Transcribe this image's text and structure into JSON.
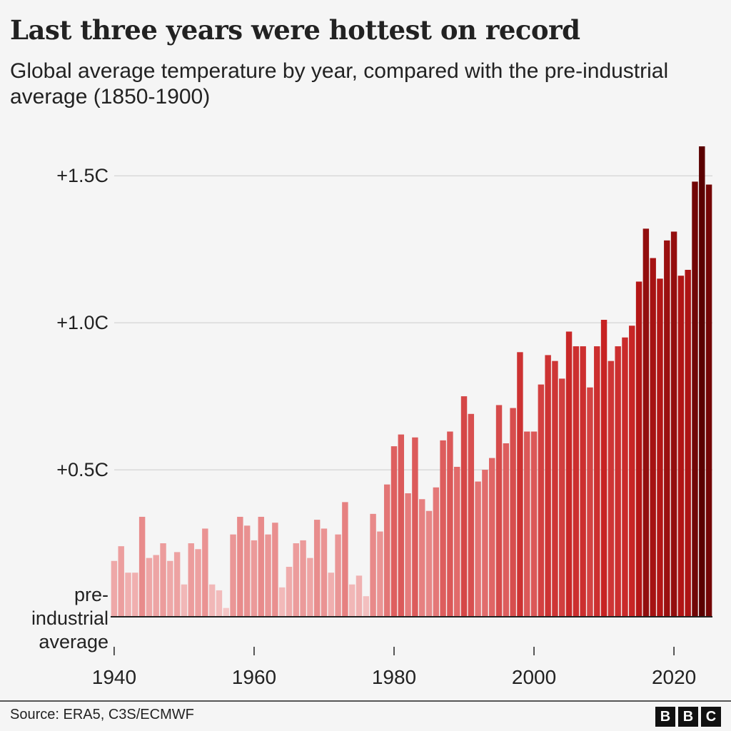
{
  "chart_data": {
    "type": "bar",
    "title": "Last three years were hottest on record",
    "subtitle": "Global average temperature by year, compared with the pre-industrial average (1850-1900)",
    "x": [
      1940,
      1941,
      1942,
      1943,
      1944,
      1945,
      1946,
      1947,
      1948,
      1949,
      1950,
      1951,
      1952,
      1953,
      1954,
      1955,
      1956,
      1957,
      1958,
      1959,
      1960,
      1961,
      1962,
      1963,
      1964,
      1965,
      1966,
      1967,
      1968,
      1969,
      1970,
      1971,
      1972,
      1973,
      1974,
      1975,
      1976,
      1977,
      1978,
      1979,
      1980,
      1981,
      1982,
      1983,
      1984,
      1985,
      1986,
      1987,
      1988,
      1989,
      1990,
      1991,
      1992,
      1993,
      1994,
      1995,
      1996,
      1997,
      1998,
      1999,
      2000,
      2001,
      2002,
      2003,
      2004,
      2005,
      2006,
      2007,
      2008,
      2009,
      2010,
      2011,
      2012,
      2013,
      2014,
      2015,
      2016,
      2017,
      2018,
      2019,
      2020,
      2021,
      2022,
      2023,
      2024,
      2025
    ],
    "values": [
      0.19,
      0.24,
      0.15,
      0.15,
      0.34,
      0.2,
      0.21,
      0.25,
      0.19,
      0.22,
      0.11,
      0.25,
      0.23,
      0.3,
      0.11,
      0.09,
      0.03,
      0.28,
      0.34,
      0.31,
      0.26,
      0.34,
      0.28,
      0.32,
      0.1,
      0.17,
      0.25,
      0.26,
      0.2,
      0.33,
      0.3,
      0.15,
      0.28,
      0.39,
      0.11,
      0.14,
      0.07,
      0.35,
      0.29,
      0.45,
      0.58,
      0.62,
      0.42,
      0.61,
      0.4,
      0.36,
      0.44,
      0.6,
      0.63,
      0.51,
      0.75,
      0.69,
      0.46,
      0.5,
      0.54,
      0.72,
      0.59,
      0.71,
      0.9,
      0.63,
      0.63,
      0.79,
      0.89,
      0.87,
      0.81,
      0.97,
      0.92,
      0.92,
      0.78,
      0.92,
      1.01,
      0.87,
      0.92,
      0.95,
      0.99,
      1.14,
      1.32,
      1.22,
      1.15,
      1.28,
      1.31,
      1.16,
      1.18,
      1.48,
      1.6,
      1.47
    ],
    "color_scale": [
      "#f6cccc",
      "#e06666",
      "#c41a1a",
      "#5a0000"
    ],
    "xlim": [
      1939.5,
      2025.5
    ],
    "xticks": [
      1940,
      1960,
      1980,
      2000,
      2020
    ],
    "ylim": [
      0,
      1.6
    ],
    "yticks": [
      {
        "value": 0,
        "label": "pre-industrial average"
      },
      {
        "value": 0.5,
        "label": "+0.5C"
      },
      {
        "value": 1.0,
        "label": "+1.0C"
      },
      {
        "value": 1.5,
        "label": "+1.5C"
      }
    ],
    "grid": true,
    "source": "Source: ERA5, C3S/ECMWF",
    "logo": [
      "B",
      "B",
      "C"
    ]
  }
}
